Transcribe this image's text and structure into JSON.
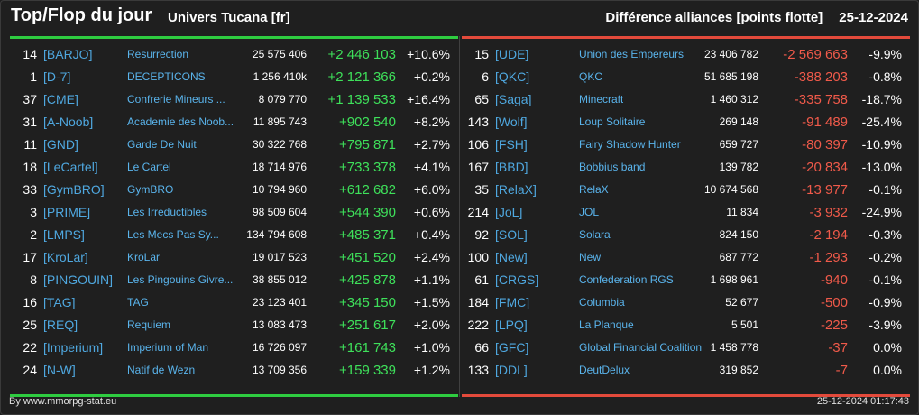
{
  "header": {
    "title": "Top/Flop du jour",
    "universe": "Univers Tucana [fr]",
    "subtitle": "Différence alliances [points flotte]",
    "date": "25-12-2024"
  },
  "colors": {
    "gain": "#3ee05a",
    "loss": "#f05a4a",
    "tag": "#4fa8e0"
  },
  "top": [
    {
      "rank": "14",
      "tag": "[BARJO]",
      "name": "Resurrection",
      "points": "25 575 406",
      "diff": "+2 446 103",
      "pct": "+10.6%"
    },
    {
      "rank": "1",
      "tag": "[D-7]",
      "name": "DECEPTICONS",
      "points": "1 256 410k",
      "diff": "+2 121 366",
      "pct": "+0.2%"
    },
    {
      "rank": "37",
      "tag": "[CME]",
      "name": "Confrerie Mineurs ...",
      "points": "8 079 770",
      "diff": "+1 139 533",
      "pct": "+16.4%"
    },
    {
      "rank": "31",
      "tag": "[A-Noob]",
      "name": "Academie des Noob...",
      "points": "11 895 743",
      "diff": "+902 540",
      "pct": "+8.2%"
    },
    {
      "rank": "11",
      "tag": "[GND]",
      "name": "Garde De Nuit",
      "points": "30 322 768",
      "diff": "+795 871",
      "pct": "+2.7%"
    },
    {
      "rank": "18",
      "tag": "[LeCartel]",
      "name": "Le Cartel",
      "points": "18 714 976",
      "diff": "+733 378",
      "pct": "+4.1%"
    },
    {
      "rank": "33",
      "tag": "[GymBRO]",
      "name": "GymBRO",
      "points": "10 794 960",
      "diff": "+612 682",
      "pct": "+6.0%"
    },
    {
      "rank": "3",
      "tag": "[PRIME]",
      "name": "Les Irreductibles",
      "points": "98 509 604",
      "diff": "+544 390",
      "pct": "+0.6%"
    },
    {
      "rank": "2",
      "tag": "[LMPS]",
      "name": "Les Mecs Pas Sy...",
      "points": "134 794 608",
      "diff": "+485 371",
      "pct": "+0.4%"
    },
    {
      "rank": "17",
      "tag": "[KroLar]",
      "name": "KroLar",
      "points": "19 017 523",
      "diff": "+451 520",
      "pct": "+2.4%"
    },
    {
      "rank": "8",
      "tag": "[PINGOUIN]",
      "name": "Les Pingouins Givre...",
      "points": "38 855 012",
      "diff": "+425 878",
      "pct": "+1.1%"
    },
    {
      "rank": "16",
      "tag": "[TAG]",
      "name": "TAG",
      "points": "23 123 401",
      "diff": "+345 150",
      "pct": "+1.5%"
    },
    {
      "rank": "25",
      "tag": "[REQ]",
      "name": "Requiem",
      "points": "13 083 473",
      "diff": "+251 617",
      "pct": "+2.0%"
    },
    {
      "rank": "22",
      "tag": "[Imperium]",
      "name": "Imperium of Man",
      "points": "16 726 097",
      "diff": "+161 743",
      "pct": "+1.0%"
    },
    {
      "rank": "24",
      "tag": "[N-W]",
      "name": "Natif de Wezn",
      "points": "13 709 356",
      "diff": "+159 339",
      "pct": "+1.2%"
    }
  ],
  "flop": [
    {
      "rank": "15",
      "tag": "[UDE]",
      "name": "Union des Empereurs",
      "points": "23 406 782",
      "diff": "-2 569 663",
      "pct": "-9.9%"
    },
    {
      "rank": "6",
      "tag": "[QKC]",
      "name": "QKC",
      "points": "51 685 198",
      "diff": "-388 203",
      "pct": "-0.8%"
    },
    {
      "rank": "65",
      "tag": "[Saga]",
      "name": "Minecraft",
      "points": "1 460 312",
      "diff": "-335 758",
      "pct": "-18.7%"
    },
    {
      "rank": "143",
      "tag": "[Wolf]",
      "name": "Loup Solitaire",
      "points": "269 148",
      "diff": "-91 489",
      "pct": "-25.4%"
    },
    {
      "rank": "106",
      "tag": "[FSH]",
      "name": "Fairy Shadow Hunter",
      "points": "659 727",
      "diff": "-80 397",
      "pct": "-10.9%"
    },
    {
      "rank": "167",
      "tag": "[BBD]",
      "name": "Bobbius band",
      "points": "139 782",
      "diff": "-20 834",
      "pct": "-13.0%"
    },
    {
      "rank": "35",
      "tag": "[RelaX]",
      "name": "RelaX",
      "points": "10 674 568",
      "diff": "-13 977",
      "pct": "-0.1%"
    },
    {
      "rank": "214",
      "tag": "[JoL]",
      "name": "JOL",
      "points": "11 834",
      "diff": "-3 932",
      "pct": "-24.9%"
    },
    {
      "rank": "92",
      "tag": "[SOL]",
      "name": "Solara",
      "points": "824 150",
      "diff": "-2 194",
      "pct": "-0.3%"
    },
    {
      "rank": "100",
      "tag": "[New]",
      "name": "New",
      "points": "687 772",
      "diff": "-1 293",
      "pct": "-0.2%"
    },
    {
      "rank": "61",
      "tag": "[CRGS]",
      "name": "Confederation RGS",
      "points": "1 698 961",
      "diff": "-940",
      "pct": "-0.1%"
    },
    {
      "rank": "184",
      "tag": "[FMC]",
      "name": "Columbia",
      "points": "52 677",
      "diff": "-500",
      "pct": "-0.9%"
    },
    {
      "rank": "222",
      "tag": "[LPQ]",
      "name": "La Planque",
      "points": "5 501",
      "diff": "-225",
      "pct": "-3.9%"
    },
    {
      "rank": "66",
      "tag": "[GFC]",
      "name": "Global Financial Coalition",
      "points": "1 458 778",
      "diff": "-37",
      "pct": "0.0%"
    },
    {
      "rank": "133",
      "tag": "[DDL]",
      "name": "DeutDelux",
      "points": "319 852",
      "diff": "-7",
      "pct": "0.0%"
    }
  ],
  "footer": {
    "credit": "By www.mmorpg-stat.eu",
    "timestamp": "25-12-2024 01:17:43"
  }
}
